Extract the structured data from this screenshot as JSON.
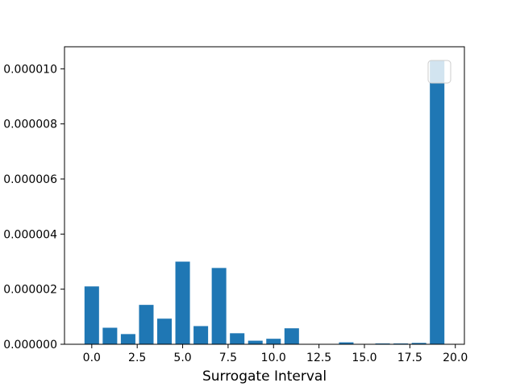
{
  "chart_data": {
    "type": "bar",
    "xlabel": "Surrogate Interval",
    "ylabel": "",
    "x": [
      0,
      1,
      2,
      3,
      4,
      5,
      6,
      7,
      8,
      9,
      10,
      11,
      12,
      13,
      14,
      15,
      16,
      17,
      18,
      19
    ],
    "values": [
      2.1e-06,
      6e-07,
      3.7e-07,
      1.43e-06,
      9.3e-07,
      3e-06,
      6.6e-07,
      2.77e-06,
      4e-07,
      1.3e-07,
      2e-07,
      5.8e-07,
      0.0,
      0.0,
      7e-08,
      0.0,
      3e-08,
      3e-08,
      5e-08,
      1.03e-05
    ],
    "xlim": [
      -1.5,
      20.5
    ],
    "ylim": [
      0,
      1.08e-05
    ],
    "xticks": [
      0.0,
      2.5,
      5.0,
      7.5,
      10.0,
      12.5,
      15.0,
      17.5,
      20.0
    ],
    "xtick_labels": [
      "0.0",
      "2.5",
      "5.0",
      "7.5",
      "10.0",
      "12.5",
      "15.0",
      "17.5",
      "20.0"
    ],
    "yticks": [
      0,
      2e-06,
      4e-06,
      6e-06,
      8e-06,
      1e-05
    ],
    "ytick_labels": [
      "0.000000",
      "0.000002",
      "0.000004",
      "0.000006",
      "0.000008",
      "0.000010"
    ],
    "bar_color": "#1f77b4",
    "grid": false,
    "legend": "upper right (empty)"
  }
}
